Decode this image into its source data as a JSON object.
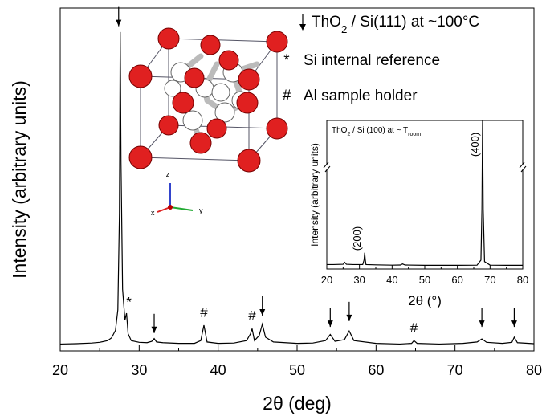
{
  "chart_data": [
    {
      "type": "line",
      "title_parts": [
        "ThO",
        "2",
        " / Si(111) at ~100°C"
      ],
      "xlabel": "2θ (deg)",
      "ylabel": "Intensity (arbitrary units)",
      "xlim": [
        20,
        80
      ],
      "xticks": [
        20,
        30,
        40,
        50,
        60,
        70,
        80
      ],
      "ylim": [
        0,
        100
      ],
      "color": "#000000",
      "x": [
        20,
        22,
        24,
        25,
        26,
        26.5,
        27,
        27.3,
        27.5,
        27.6,
        27.7,
        27.9,
        28.2,
        28.4,
        28.6,
        29,
        30,
        31,
        31.6,
        31.9,
        32.2,
        33,
        35,
        37,
        37.8,
        38.2,
        38.6,
        40,
        42,
        43.6,
        44.1,
        44.3,
        44.6,
        45.2,
        45.6,
        46,
        47,
        50,
        52,
        53.6,
        54.2,
        54.8,
        56,
        56.6,
        57.2,
        60,
        63,
        64.5,
        64.8,
        65.2,
        68,
        71,
        72.8,
        73.4,
        74,
        76,
        77.2,
        77.5,
        77.9,
        80
      ],
      "values": [
        2,
        2.1,
        2.3,
        2.5,
        3,
        3.8,
        6,
        12,
        40,
        93,
        55,
        18,
        9,
        11,
        5,
        3,
        2.5,
        2.4,
        2.8,
        3.6,
        2.6,
        2.4,
        2.2,
        2.2,
        3,
        7.5,
        2.6,
        2.2,
        2.3,
        3,
        5,
        6.5,
        3,
        4.5,
        7.8,
        4,
        2.6,
        2.2,
        2.3,
        3,
        4.8,
        2.8,
        3.3,
        5.8,
        3,
        2.2,
        2,
        2.2,
        3,
        2.2,
        2,
        2.2,
        2.6,
        3.5,
        2.5,
        2.2,
        2.5,
        4,
        2.4,
        2.1
      ],
      "arrows": [
        {
          "x": 27.4,
          "y": 94
        },
        {
          "x": 31.9,
          "y": 4.5
        },
        {
          "x": 45.6,
          "y": 9.6
        },
        {
          "x": 54.2,
          "y": 6.3
        },
        {
          "x": 56.6,
          "y": 8
        },
        {
          "x": 73.4,
          "y": 6.3
        },
        {
          "x": 77.5,
          "y": 6.3
        }
      ],
      "legend": [
        {
          "symbol": "*",
          "label": "Si internal reference",
          "color": "#1a7a1a",
          "peaks": [
            {
              "x": 28.7,
              "y": 13
            }
          ]
        },
        {
          "symbol": "#",
          "label": "Al sample holder",
          "color": "#2222cc",
          "peaks": [
            {
              "x": 38.2,
              "y": 10
            },
            {
              "x": 44.3,
              "y": 9
            },
            {
              "x": 64.8,
              "y": 5.4
            }
          ]
        }
      ]
    },
    {
      "type": "line",
      "title_parts": [
        "ThO",
        "2",
        " / Si (100) at ~ T",
        "room"
      ],
      "xlabel": "2θ (°)",
      "ylabel": "Intensity (arbitrary units)",
      "xlim": [
        20,
        80
      ],
      "xticks": [
        20,
        30,
        40,
        50,
        60,
        70,
        80
      ],
      "ylim": [
        0,
        100
      ],
      "color": "#000000",
      "x": [
        20,
        22,
        25,
        25.5,
        26,
        28,
        31,
        31.4,
        31.6,
        31.8,
        32,
        35,
        40,
        42.5,
        43.2,
        44,
        50,
        60,
        66,
        67.2,
        67.5,
        67.7,
        67.9,
        68.3,
        70,
        75,
        80
      ],
      "values": [
        3,
        3,
        3.2,
        4.5,
        3.2,
        3,
        3,
        6,
        11,
        6,
        3,
        2.8,
        2.6,
        2.7,
        3.4,
        2.7,
        2.5,
        2.5,
        2.6,
        6,
        40,
        100,
        40,
        5,
        2.6,
        2.5,
        2.5
      ],
      "peak_labels": [
        {
          "label": "(200)",
          "x": 31.6
        },
        {
          "label": "(400)",
          "x": 67.7
        }
      ]
    }
  ]
}
